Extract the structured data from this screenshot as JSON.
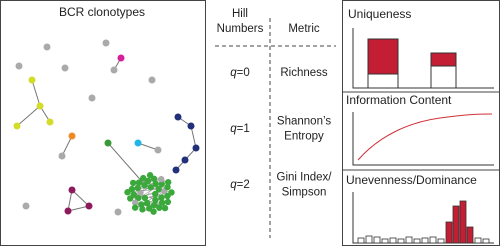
{
  "network": {
    "title": "BCR clonotypes"
  },
  "table": {
    "header": {
      "hill": [
        "Hill",
        "Numbers"
      ],
      "metric": "Metric"
    },
    "rows": [
      {
        "symbol": "q",
        "order": "=0",
        "metric": [
          "Richness"
        ]
      },
      {
        "symbol": "q",
        "order": "=1",
        "metric": [
          "Shannon’s",
          "Entropy"
        ]
      },
      {
        "symbol": "q",
        "order": "=2",
        "metric": [
          "Gini Index/",
          "Simpson"
        ]
      }
    ]
  },
  "metrics": [
    {
      "title": "Uniqueness"
    },
    {
      "title": "Information Content"
    },
    {
      "title": "Unevenness/Dominance"
    }
  ]
}
